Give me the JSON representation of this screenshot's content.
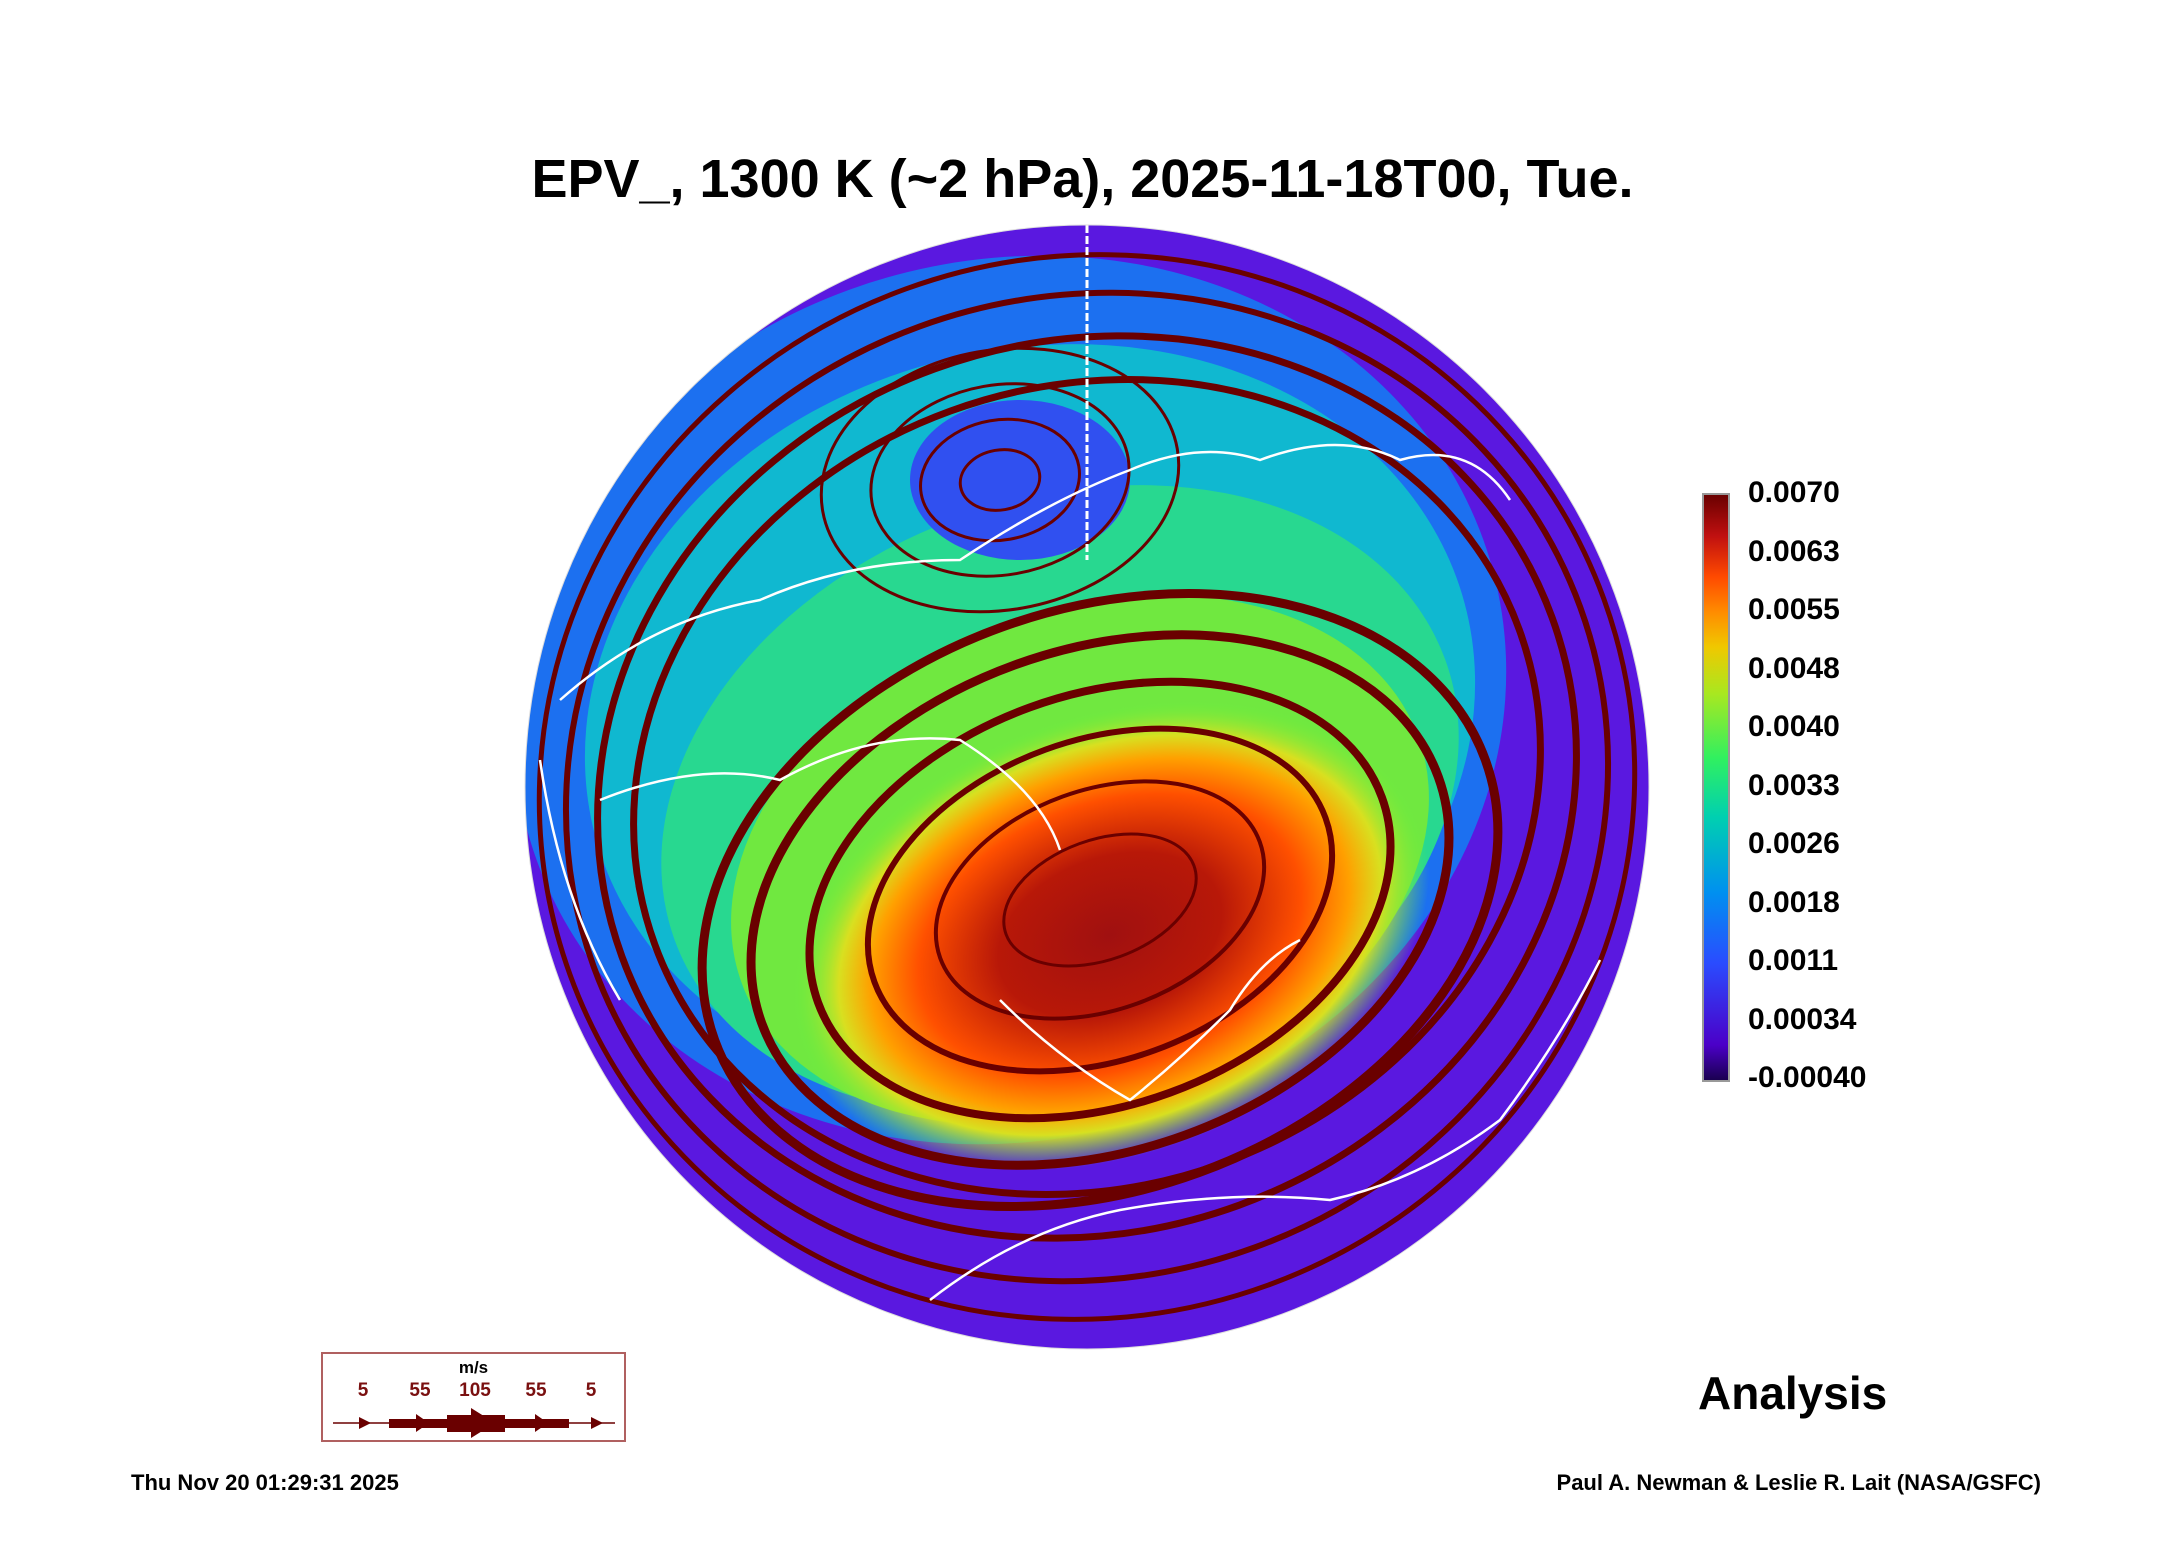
{
  "title": "EPV_, 1300 K (~2 hPa), 2025-11-18T00, Tue.",
  "chart_data": {
    "type": "heatmap",
    "title": "EPV_, 1300 K (~2 hPa), 2025-11-18T00, Tue.",
    "projection": "orthographic polar (Northern Hemisphere)",
    "variable": "EPV_",
    "level": "1300 K (~2 hPa)",
    "colorbar": {
      "ticks": [
        "0.0070",
        "0.0063",
        "0.0055",
        "0.0048",
        "0.0040",
        "0.0033",
        "0.0026",
        "0.0018",
        "0.0011",
        "0.00034",
        "-0.00040"
      ],
      "range": [
        -0.0004,
        0.007
      ]
    },
    "overlay": "wind streamlines",
    "wind_legend": {
      "unit": "m/s",
      "values": [
        "5",
        "55",
        "105",
        "55",
        "5"
      ]
    }
  },
  "annotation": "Analysis",
  "timestamp": "Thu Nov 20 01:29:31 2025",
  "credit": "Paul A. Newman & Leslie R. Lait (NASA/GSFC)",
  "colors": {
    "streamline": "#6a0000",
    "coast": "#ffffff"
  }
}
